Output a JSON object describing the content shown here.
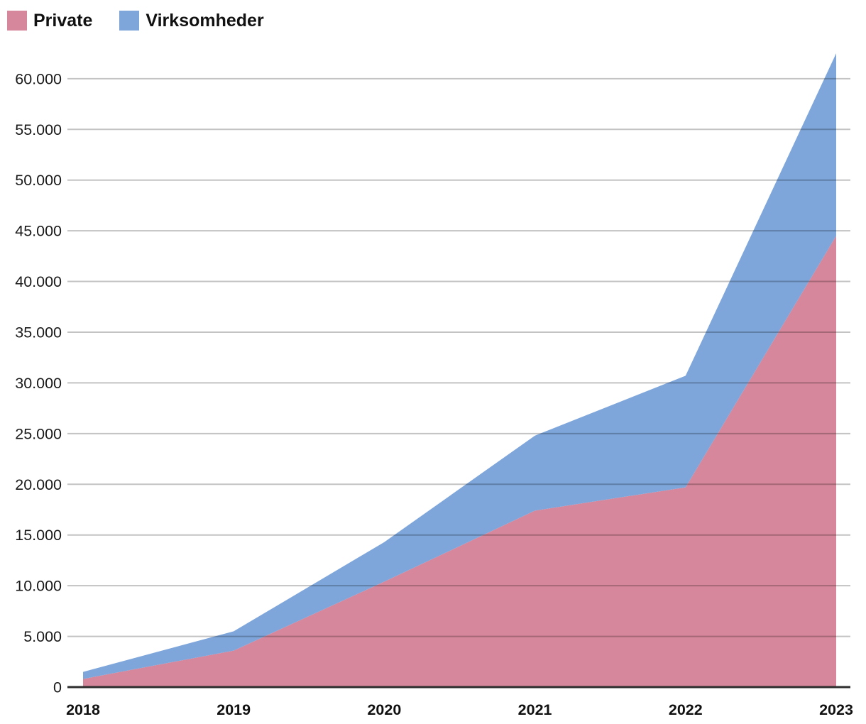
{
  "legend": {
    "items": [
      {
        "label": "Private",
        "color": "#d6879b"
      },
      {
        "label": "Virksomheder",
        "color": "#7ea6db"
      }
    ]
  },
  "chart_data": {
    "type": "area",
    "stacked": true,
    "title": "",
    "xlabel": "",
    "ylabel": "",
    "x_tick_labels": [
      "2018",
      "2019",
      "2020",
      "2021",
      "2022",
      "2023"
    ],
    "series": [
      {
        "name": "Private",
        "color": "#d6879b",
        "values": [
          800,
          3600,
          10400,
          17400,
          19700,
          44500
        ]
      },
      {
        "name": "Virksomheder",
        "color": "#7ea6db",
        "values": [
          700,
          1900,
          3900,
          7400,
          11000,
          18000
        ]
      }
    ],
    "stacked_totals": [
      1500,
      5500,
      14300,
      24800,
      30700,
      62500
    ],
    "y_axis": {
      "min": 0,
      "max": 62500,
      "tick_step": 5000,
      "tick_values": [
        0,
        5000,
        10000,
        15000,
        20000,
        25000,
        30000,
        35000,
        40000,
        45000,
        50000,
        55000,
        60000
      ],
      "tick_labels": [
        "0",
        "5.000",
        "10.000",
        "15.000",
        "20.000",
        "25.000",
        "30.000",
        "35.000",
        "40.000",
        "45.000",
        "50.000",
        "55.000",
        "60.000"
      ]
    },
    "grid": true,
    "legend_position": "top-left"
  },
  "colors": {
    "background": "#ffffff",
    "gridline": "rgba(0,0,0,0.235)",
    "axis_line": "#2e2e2e",
    "tick_text": "#1a1a1a"
  }
}
